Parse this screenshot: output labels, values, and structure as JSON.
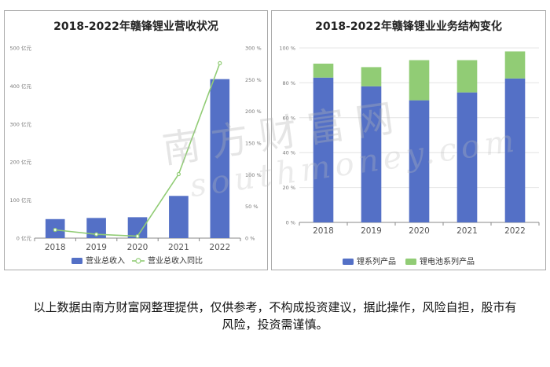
{
  "watermark": {
    "cn": "南方财富网",
    "en": "southmoney.com"
  },
  "disclaimer": "以上数据由南方财富网整理提供，仅供参考，不构成投资建议，据此操作，风险自担，股市有风险，投资需谨慎。",
  "colors": {
    "bar_blue": "#5470c6",
    "line_green": "#91cc75"
  },
  "chart_data": [
    {
      "type": "bar",
      "title": "2018-2022年赣锋锂业营收状况",
      "categories": [
        "2018",
        "2019",
        "2020",
        "2021",
        "2022"
      ],
      "series": [
        {
          "name": "营业总收入",
          "type": "bar",
          "axis": "left",
          "values": [
            50,
            53,
            55,
            111,
            418
          ]
        },
        {
          "name": "营业总收入同比",
          "type": "line",
          "axis": "right",
          "values": [
            13,
            6,
            3,
            101,
            276
          ]
        }
      ],
      "y_left": {
        "ticks": [
          "0 亿元",
          "100 亿元",
          "200 亿元",
          "300 亿元",
          "400 亿元",
          "500 亿元"
        ],
        "ylim": [
          0,
          500
        ]
      },
      "y_right": {
        "ticks": [
          "0 %",
          "50 %",
          "100 %",
          "150 %",
          "200 %",
          "250 %",
          "300 %"
        ],
        "ylim": [
          0,
          300
        ]
      },
      "grid": false,
      "legend_position": "bottom"
    },
    {
      "type": "bar",
      "stacked": true,
      "title": "2018-2022年赣锋锂业业务结构变化",
      "categories": [
        "2018",
        "2019",
        "2020",
        "2021",
        "2022"
      ],
      "series": [
        {
          "name": "锂系列产品",
          "values": [
            83,
            78,
            70,
            74.5,
            82.5
          ]
        },
        {
          "name": "锂电池系列产品",
          "values": [
            8,
            11,
            23,
            18.5,
            15.5
          ]
        }
      ],
      "y": {
        "ticks": [
          "0 %",
          "20 %",
          "40 %",
          "60 %",
          "80 %",
          "100 %"
        ],
        "ylim": [
          0,
          100
        ]
      },
      "grid": true,
      "legend_position": "bottom"
    }
  ]
}
